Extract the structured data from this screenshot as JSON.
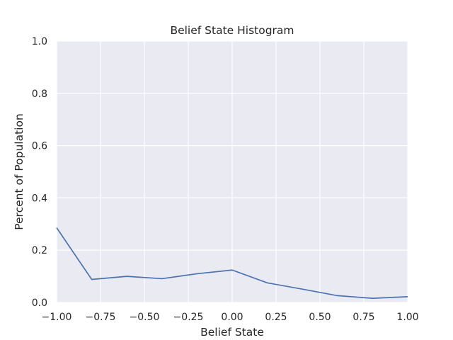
{
  "chart_data": {
    "type": "line",
    "title": "Belief State Histogram",
    "xlabel": "Belief State",
    "ylabel": "Percent of Population",
    "xlim": [
      -1.0,
      1.0
    ],
    "ylim": [
      0.0,
      1.0
    ],
    "xticks": [
      "−1.00",
      "−0.75",
      "−0.50",
      "−0.25",
      "0.00",
      "0.25",
      "0.50",
      "0.75",
      "1.00"
    ],
    "xtick_values": [
      -1.0,
      -0.75,
      -0.5,
      -0.25,
      0.0,
      0.25,
      0.5,
      0.75,
      1.0
    ],
    "yticks": [
      "0.0",
      "0.2",
      "0.4",
      "0.6",
      "0.8",
      "1.0"
    ],
    "ytick_values": [
      0.0,
      0.2,
      0.4,
      0.6,
      0.8,
      1.0
    ],
    "grid": true,
    "series": [
      {
        "color": "#4c72b0",
        "x": [
          -1.0,
          -0.8,
          -0.6,
          -0.4,
          -0.2,
          0.0,
          0.2,
          0.4,
          0.6,
          0.8,
          1.0
        ],
        "y": [
          0.286,
          0.088,
          0.1,
          0.091,
          0.11,
          0.124,
          0.075,
          0.051,
          0.026,
          0.016,
          0.022
        ]
      }
    ]
  }
}
